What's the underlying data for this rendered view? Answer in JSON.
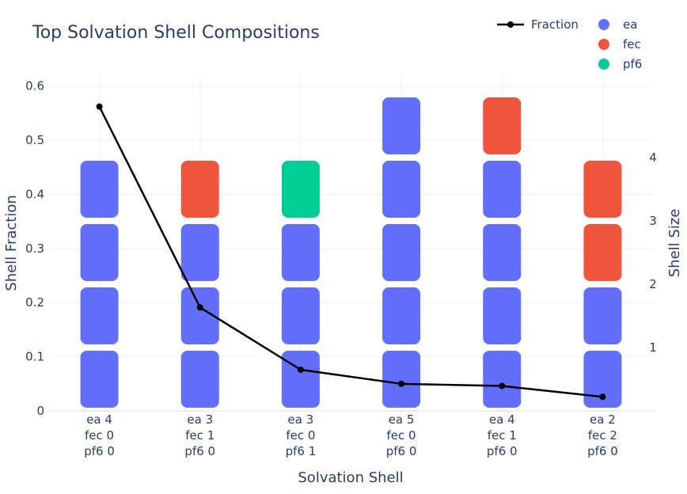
{
  "chart_data": {
    "type": "line",
    "title": "Top Solvation Shell Compositions",
    "xlabel": "Solvation Shell",
    "ylabel": "Shell Fraction",
    "y2label": "Shell Size",
    "categories": [
      [
        "ea 4",
        "fec 0",
        "pf6 0"
      ],
      [
        "ea 3",
        "fec 1",
        "pf6 0"
      ],
      [
        "ea 3",
        "fec 0",
        "pf6 1"
      ],
      [
        "ea 5",
        "fec 0",
        "pf6 0"
      ],
      [
        "ea 4",
        "fec 1",
        "pf6 0"
      ],
      [
        "ea 2",
        "fec 2",
        "pf6 0"
      ]
    ],
    "fraction": {
      "name": "Fraction",
      "values": [
        0.562,
        0.191,
        0.076,
        0.05,
        0.046,
        0.026
      ],
      "color": "#000000"
    },
    "species": [
      {
        "name": "ea",
        "color": "#636efa"
      },
      {
        "name": "fec",
        "color": "#ef553b"
      },
      {
        "name": "pf6",
        "color": "#00cc96"
      }
    ],
    "stacks": [
      [
        "ea",
        "ea",
        "ea",
        "ea"
      ],
      [
        "ea",
        "ea",
        "ea",
        "fec"
      ],
      [
        "ea",
        "ea",
        "ea",
        "pf6"
      ],
      [
        "ea",
        "ea",
        "ea",
        "ea",
        "ea"
      ],
      [
        "ea",
        "ea",
        "ea",
        "ea",
        "fec"
      ],
      [
        "ea",
        "ea",
        "fec",
        "fec"
      ]
    ],
    "ylim": [
      0,
      0.62
    ],
    "yticks": [
      "0",
      "0.1",
      "0.2",
      "0.3",
      "0.4",
      "0.5",
      "0.6"
    ],
    "y2lim": [
      0,
      5.3
    ],
    "y2ticks": [
      "1",
      "2",
      "3",
      "4"
    ],
    "grid": true,
    "legend_position": "top-right"
  }
}
